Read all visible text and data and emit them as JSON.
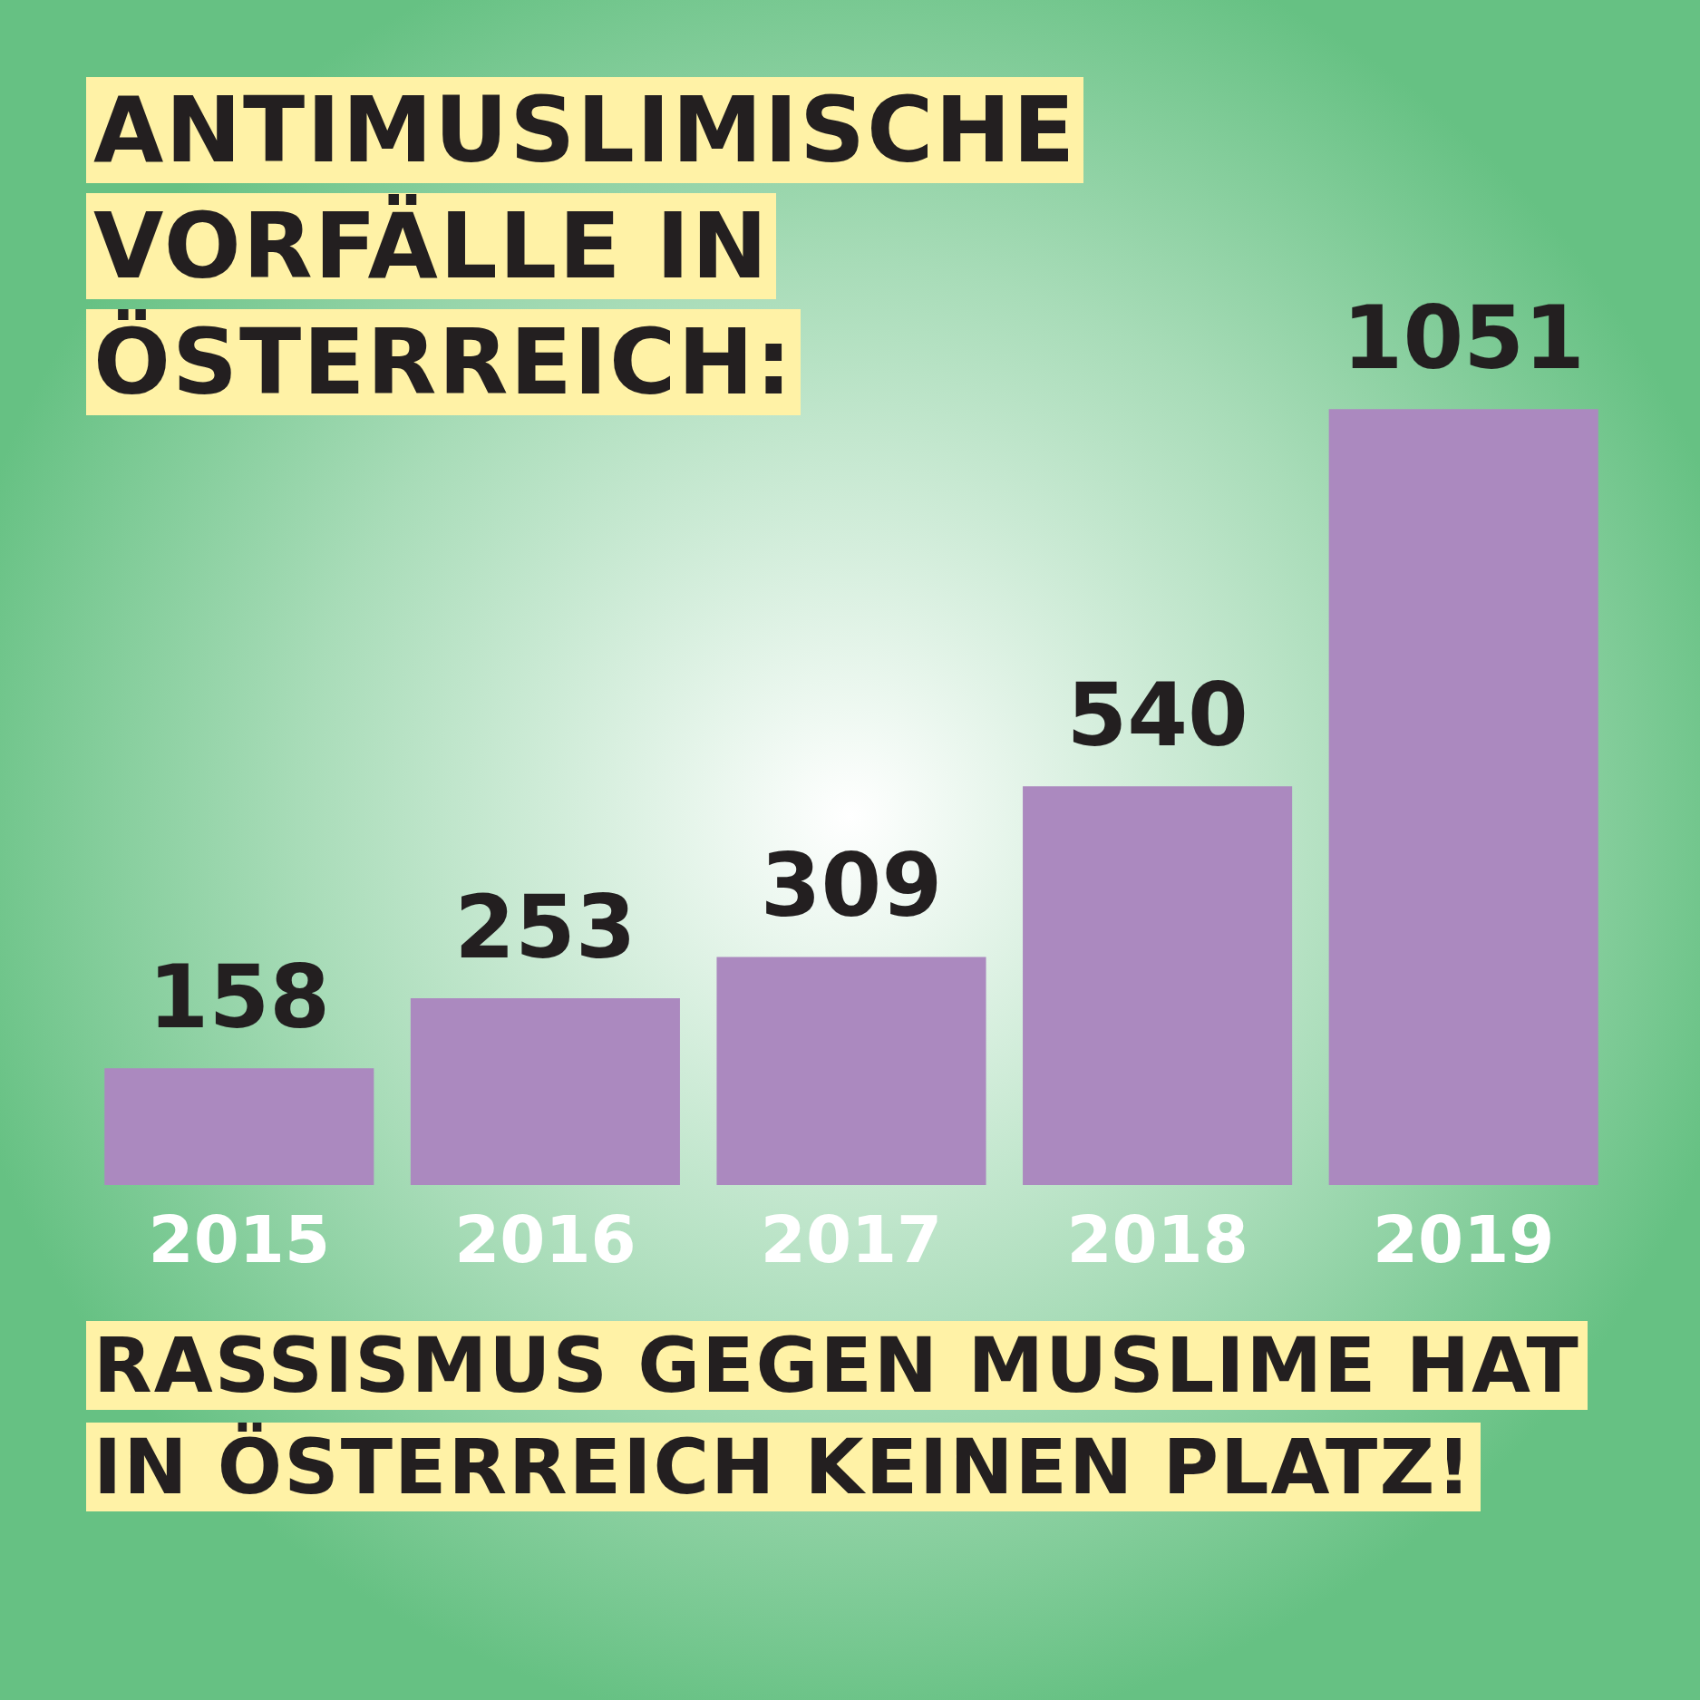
{
  "chart_data": {
    "type": "bar",
    "title": "ANTIMUSLIMISCHE VORFÄLLE IN ÖSTERREICH:",
    "categories": [
      "2015",
      "2016",
      "2017",
      "2018",
      "2019"
    ],
    "values": [
      158,
      253,
      309,
      540,
      1051
    ],
    "color": "#ab89bf",
    "data_labels": true,
    "annotations": [
      "RASSISMUS GEGEN MUSLIME HAT IN ÖSTERREICH KEINEN PLATZ!"
    ]
  }
}
